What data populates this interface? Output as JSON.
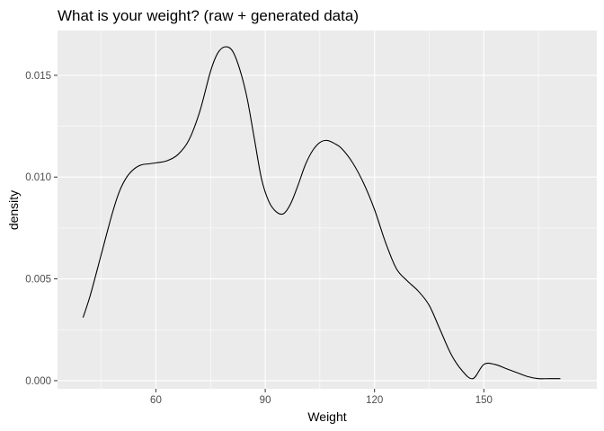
{
  "chart_data": {
    "type": "line",
    "title": "What is your weight? (raw + generated data)",
    "xlabel": "Weight",
    "ylabel": "density",
    "xlim": [
      33,
      181
    ],
    "ylim": [
      -0.0004,
      0.0172
    ],
    "xticks": [
      60,
      90,
      120,
      150
    ],
    "xtick_labels": [
      "60",
      "90",
      "120",
      "150"
    ],
    "yticks": [
      0.0,
      0.005,
      0.01,
      0.015
    ],
    "ytick_labels": [
      "0.000",
      "0.005",
      "0.010",
      "0.015"
    ],
    "grid": true,
    "series": [
      {
        "x": [
          40,
          42,
          45,
          48,
          50,
          52,
          54,
          56,
          58,
          60,
          63,
          66,
          69,
          72,
          75,
          77,
          79,
          81,
          83,
          85,
          87,
          89,
          91,
          93,
          95,
          97,
          99,
          101,
          103,
          105,
          107,
          109,
          111,
          114,
          117,
          120,
          123,
          126,
          129,
          132,
          135,
          138,
          141,
          144,
          147,
          150,
          153,
          156,
          159,
          162,
          165,
          168,
          171
        ],
        "y": [
          0.0031,
          0.0042,
          0.0062,
          0.0082,
          0.0093,
          0.01,
          0.0104,
          0.0106,
          0.01065,
          0.0107,
          0.0108,
          0.0111,
          0.0118,
          0.0132,
          0.0152,
          0.0161,
          0.0164,
          0.0162,
          0.0153,
          0.0139,
          0.0119,
          0.0099,
          0.0088,
          0.0083,
          0.0082,
          0.0087,
          0.0096,
          0.0106,
          0.0113,
          0.0117,
          0.0118,
          0.01165,
          0.0114,
          0.0107,
          0.0097,
          0.0084,
          0.0068,
          0.0055,
          0.0049,
          0.0044,
          0.0037,
          0.0025,
          0.0013,
          0.0005,
          0.0001,
          0.0008,
          0.0008,
          0.0006,
          0.0004,
          0.0002,
          0.0001,
          0.0001,
          0.0001
        ]
      }
    ]
  }
}
